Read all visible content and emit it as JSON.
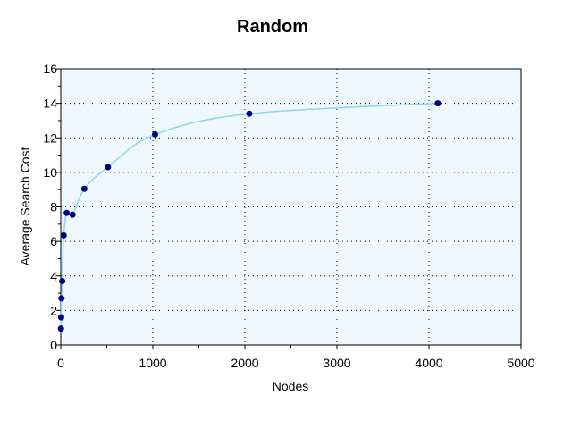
{
  "chart_data": {
    "type": "line",
    "title": "Random",
    "xlabel": "Nodes",
    "ylabel": "Average Search Cost",
    "xlim": [
      0,
      5000
    ],
    "ylim": [
      0,
      16
    ],
    "x_ticks": [
      0,
      1000,
      2000,
      3000,
      4000,
      5000
    ],
    "y_ticks": [
      0,
      2,
      4,
      6,
      8,
      10,
      12,
      14,
      16
    ],
    "grid": true,
    "grid_style": "dotted",
    "legend": "none",
    "series": [
      {
        "x": [
          2,
          4,
          8,
          16,
          32,
          64,
          128,
          256,
          512,
          1024,
          2048,
          4096
        ],
        "y": [
          0.95,
          1.6,
          2.7,
          3.7,
          6.35,
          7.65,
          7.55,
          9.05,
          10.3,
          12.2,
          13.4,
          14.0
        ],
        "line_color": "#87d8ef",
        "marker_color": "#000080"
      }
    ]
  },
  "colors": {
    "plot_background": "#f0f8ff",
    "axis": "#000000",
    "grid": "#000000"
  }
}
